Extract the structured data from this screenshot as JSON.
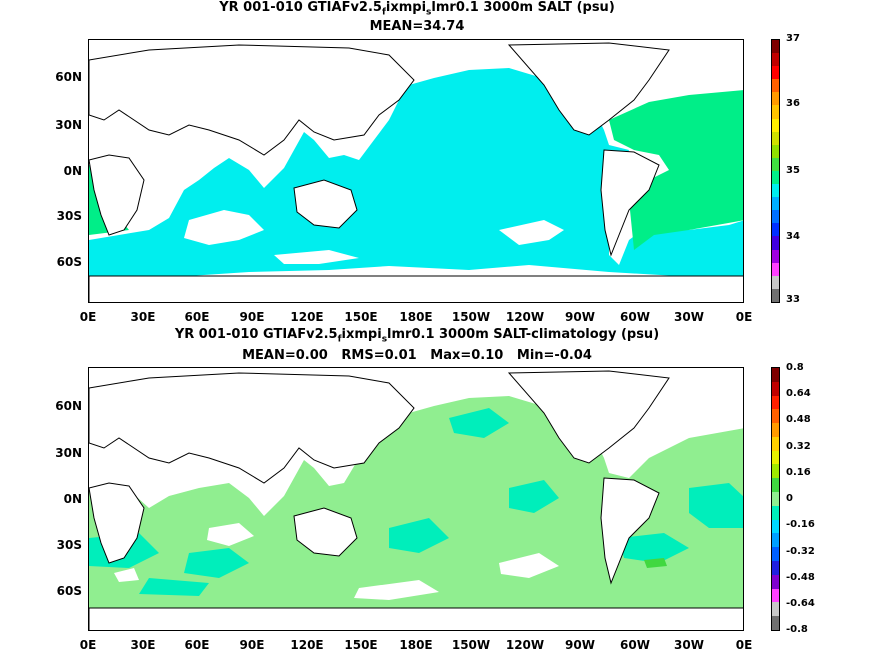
{
  "map1": {
    "title_line1_pre": "YR 001-010 GTIAFv2.5",
    "title_line1_sub": "f",
    "title_line1_mid": "ixmpi",
    "title_line1_sub2": "s",
    "title_line1_post": "lmr0.1 3000m SALT (psu)",
    "title_line2": "MEAN=34.74",
    "lat_labels": [
      "60N",
      "30N",
      "0N",
      "30S",
      "60S"
    ],
    "lon_labels": [
      "0E",
      "30E",
      "60E",
      "90E",
      "120E",
      "150E",
      "180E",
      "150W",
      "120W",
      "90W",
      "60W",
      "30W",
      "0E"
    ],
    "colorbar": {
      "labels": [
        "37",
        "36",
        "35",
        "34",
        "33"
      ],
      "colors": [
        "#7f0000",
        "#c00000",
        "#ff0000",
        "#ff6000",
        "#ff9a00",
        "#ffc400",
        "#ffee00",
        "#cfe000",
        "#90e000",
        "#40e040",
        "#00ee88",
        "#00eeee",
        "#00b0ff",
        "#0070ff",
        "#0030ff",
        "#4000e0",
        "#a000e0",
        "#ff40ff",
        "#c8c8c8",
        "#707070"
      ]
    }
  },
  "map2": {
    "title_line1_pre": "YR 001-010 GTIAFv2.5",
    "title_line1_sub": "f",
    "title_line1_mid": "ixmpi",
    "title_line1_sub2": "s",
    "title_line1_post": "lmr0.1 3000m SALT-climatology (psu)",
    "title_line2": "MEAN=0.00   RMS=0.01   Max=0.10   Min=-0.04",
    "lat_labels": [
      "60N",
      "30N",
      "0N",
      "30S",
      "60S"
    ],
    "lon_labels": [
      "0E",
      "30E",
      "60E",
      "90E",
      "120E",
      "150E",
      "180E",
      "150W",
      "120W",
      "90W",
      "60W",
      "30W",
      "0E"
    ],
    "colorbar": {
      "labels": [
        "0.8",
        "0.64",
        "0.48",
        "0.32",
        "0.16",
        "0",
        "-0.16",
        "-0.32",
        "-0.48",
        "-0.64",
        "-0.8"
      ],
      "colors": [
        "#7f0000",
        "#c00000",
        "#ff2000",
        "#ff6000",
        "#ff9a00",
        "#ffd000",
        "#e8f000",
        "#a0e800",
        "#40d840",
        "#90ee90",
        "#00eebb",
        "#00d8ff",
        "#00a0ff",
        "#0060ff",
        "#2020e0",
        "#8000d0",
        "#ff40ff",
        "#c8c8c8",
        "#707070"
      ]
    }
  },
  "colors": {
    "map1_ocean": "#00eeee",
    "map1_atlantic": "#00ee88",
    "map2_positive": "#90ee90",
    "map2_zero": "#00eebb",
    "land": "#ffffff"
  }
}
